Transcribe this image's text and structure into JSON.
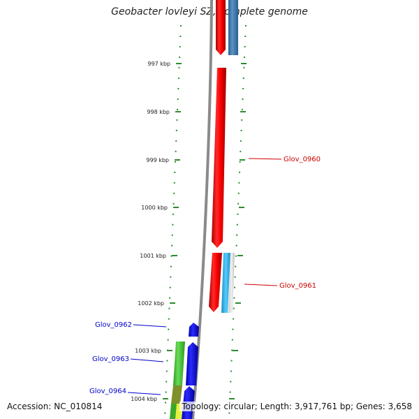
{
  "title": "Geobacter lovleyi SZ, complete genome",
  "footer": {
    "accession": "Accession: NC_010814",
    "summary": "Topology: circular; Length: 3,917,761 bp; Genes: 3,658"
  },
  "axis": {
    "unit": "kbp",
    "ticks": [
      {
        "label": "997 kbp"
      },
      {
        "label": "998 kbp"
      },
      {
        "label": "999 kbp"
      },
      {
        "label": "1000 kbp"
      },
      {
        "label": "1001 kbp"
      },
      {
        "label": "1002 kbp"
      },
      {
        "label": "1003 kbp"
      },
      {
        "label": "1004 kbp"
      }
    ]
  },
  "genes": [
    {
      "label": "Glov_0960",
      "color": "#cc0000"
    },
    {
      "label": "Glov_0961",
      "color": "#cc0000"
    },
    {
      "label": "Glov_0962",
      "color": "#0000cc"
    },
    {
      "label": "Glov_0963",
      "color": "#0000cc"
    },
    {
      "label": "Glov_0964",
      "color": "#0000cc"
    }
  ],
  "colors": {
    "backbone": "#8a8a8a",
    "ruler": "#2e8b2e",
    "forward_strand": "#ee0000",
    "reverse_strand": "#0000ee",
    "cds_green": "#44cc33",
    "cds_steelblue": "#3f7fb4",
    "cds_cyan": "#33bbee"
  }
}
